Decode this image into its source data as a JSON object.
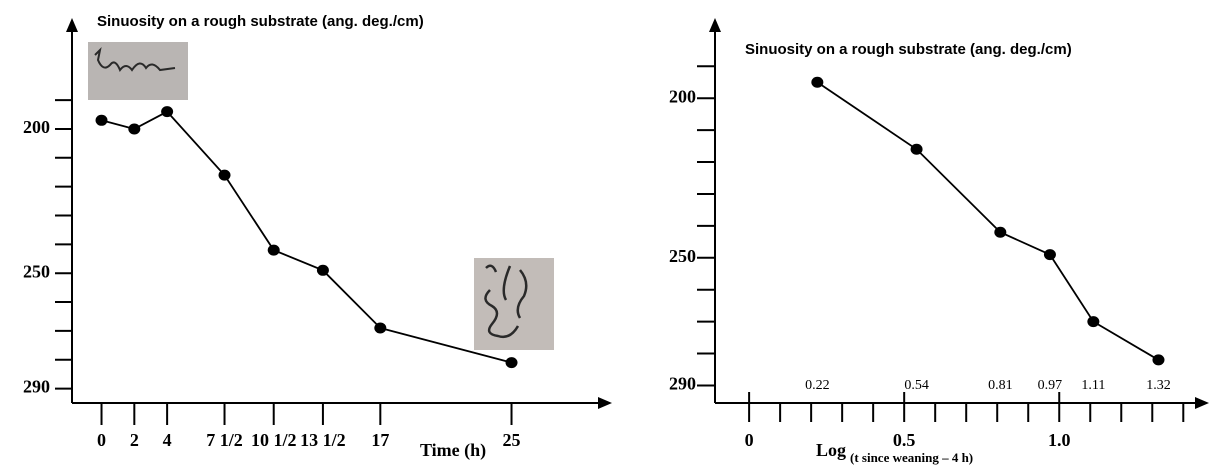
{
  "chart_data": [
    {
      "type": "line",
      "title": "Sinuosity on a rough substrate (ang. deg./cm)",
      "x_label": "Time (h)",
      "x": [
        0,
        2,
        4,
        7.5,
        10.5,
        13.5,
        17,
        25
      ],
      "values": [
        197,
        200,
        194,
        216,
        242,
        249,
        269,
        281
      ],
      "color": "#000000",
      "xlim": [
        -1.8,
        30.7
      ],
      "ylim": [
        295,
        165
      ],
      "xticks": [
        0,
        2,
        4,
        {
          "value": 7.5,
          "label": "7 1/2"
        },
        {
          "value": 10.5,
          "label": "10 1/2"
        },
        {
          "value": 13.5,
          "label": "13 1/2"
        },
        17,
        25
      ],
      "yticks": [
        200,
        250,
        290
      ],
      "yminorticks": [
        190,
        210,
        220,
        230,
        240,
        260,
        270,
        280
      ]
    },
    {
      "type": "line",
      "title": "Sinuosity on a rough substrate (ang. deg./cm)",
      "x_label": "Log",
      "x_label_subscript": "(t since weaning – 4 h)",
      "x": [
        0.22,
        0.54,
        0.81,
        0.97,
        1.11,
        1.32
      ],
      "values": [
        195,
        216,
        242,
        249,
        270,
        282
      ],
      "point_labels": true,
      "color": "#000000",
      "xlim": [
        -0.11,
        1.47
      ],
      "ylim": [
        295.5,
        178
      ],
      "xticks": [
        0,
        0.5,
        {
          "value": 1,
          "label": "1.0"
        }
      ],
      "xminorticks": [
        0.1,
        0.2,
        0.3,
        0.4,
        0.6,
        0.7,
        0.8,
        0.9,
        1.1,
        1.2,
        1.3,
        1.4
      ],
      "yticks": [
        200,
        250,
        290
      ],
      "yminorticks": [
        190,
        210,
        220,
        230,
        240,
        260,
        270,
        280
      ]
    }
  ]
}
